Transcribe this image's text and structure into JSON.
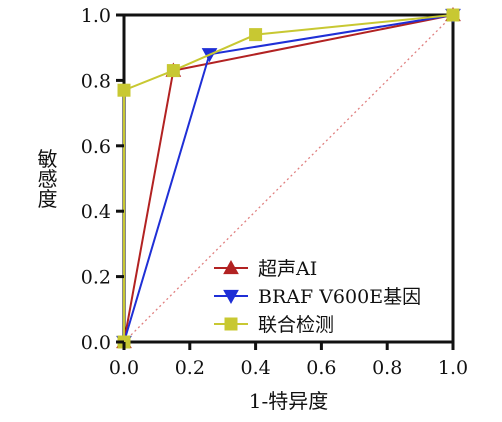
{
  "chart_data": {
    "type": "line",
    "title": "",
    "xlabel": "1-特异度",
    "ylabel": "敏感度",
    "xlim": [
      0,
      1
    ],
    "ylim": [
      0,
      1
    ],
    "xticks": [
      "0.0",
      "0.2",
      "0.4",
      "0.6",
      "0.8",
      "1.0"
    ],
    "yticks": [
      "0.0",
      "0.2",
      "0.4",
      "0.6",
      "0.8",
      "1.0"
    ],
    "grid": false,
    "legend_position": "bottom-right",
    "reference_line": {
      "from": [
        0,
        0
      ],
      "to": [
        1,
        1
      ],
      "style": "dotted",
      "color": "#e08080"
    },
    "series": [
      {
        "name": "超声AI",
        "color": "#b22222",
        "marker": "triangle-up",
        "x": [
          0.0,
          0.15,
          1.0
        ],
        "y": [
          0.0,
          0.83,
          1.0
        ]
      },
      {
        "name": "BRAF V600E基因",
        "color": "#1f2fd6",
        "marker": "triangle-down",
        "x": [
          0.0,
          0.26,
          1.0
        ],
        "y": [
          0.0,
          0.88,
          1.0
        ]
      },
      {
        "name": "联合检测",
        "color": "#c8c832",
        "marker": "square",
        "x": [
          0.0,
          0.0,
          0.15,
          0.4,
          1.0
        ],
        "y": [
          0.0,
          0.77,
          0.83,
          0.94,
          1.0
        ]
      }
    ]
  }
}
